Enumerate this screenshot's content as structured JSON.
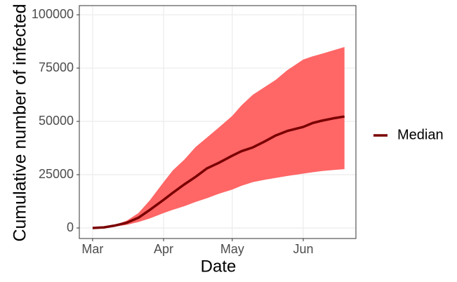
{
  "chart_data": {
    "type": "line",
    "x_label": "Date",
    "y_label": "Cumulative number of infected",
    "x": [
      0,
      5,
      10,
      15,
      20,
      25,
      31,
      35,
      40,
      45,
      50,
      55,
      61,
      65,
      70,
      75,
      80,
      85,
      92,
      96,
      100,
      105,
      110
    ],
    "xlim": [
      -5.8,
      115
    ],
    "xticks": [
      {
        "value": 0,
        "label": "Mar"
      },
      {
        "value": 31,
        "label": "Apr"
      },
      {
        "value": 61,
        "label": "May"
      },
      {
        "value": 92,
        "label": "Jun"
      }
    ],
    "ylim": [
      -4934,
      104300
    ],
    "yticks": [
      0,
      25000,
      50000,
      75000,
      100000
    ],
    "grid": true,
    "legend": "right",
    "ribbon": {
      "color": "#ff6666",
      "upper": [
        0,
        500,
        1500,
        3500,
        7000,
        13000,
        21500,
        27000,
        32000,
        38000,
        42500,
        47000,
        52600,
        57500,
        62500,
        66000,
        69500,
        74000,
        79000,
        80500,
        81700,
        83300,
        84900
      ],
      "lower": [
        0,
        200,
        700,
        1500,
        2800,
        4500,
        7000,
        8500,
        10200,
        12200,
        14000,
        16000,
        18000,
        19800,
        21500,
        22600,
        23500,
        24400,
        25500,
        26100,
        26700,
        27200,
        27600
      ]
    },
    "series": [
      {
        "name": "Median",
        "color": "#7a0000",
        "values": [
          0,
          300,
          1200,
          2500,
          4800,
          8500,
          13200,
          16500,
          20400,
          24000,
          28000,
          30500,
          33900,
          36000,
          37800,
          40500,
          43400,
          45500,
          47400,
          49200,
          50300,
          51400,
          52300
        ]
      }
    ]
  }
}
